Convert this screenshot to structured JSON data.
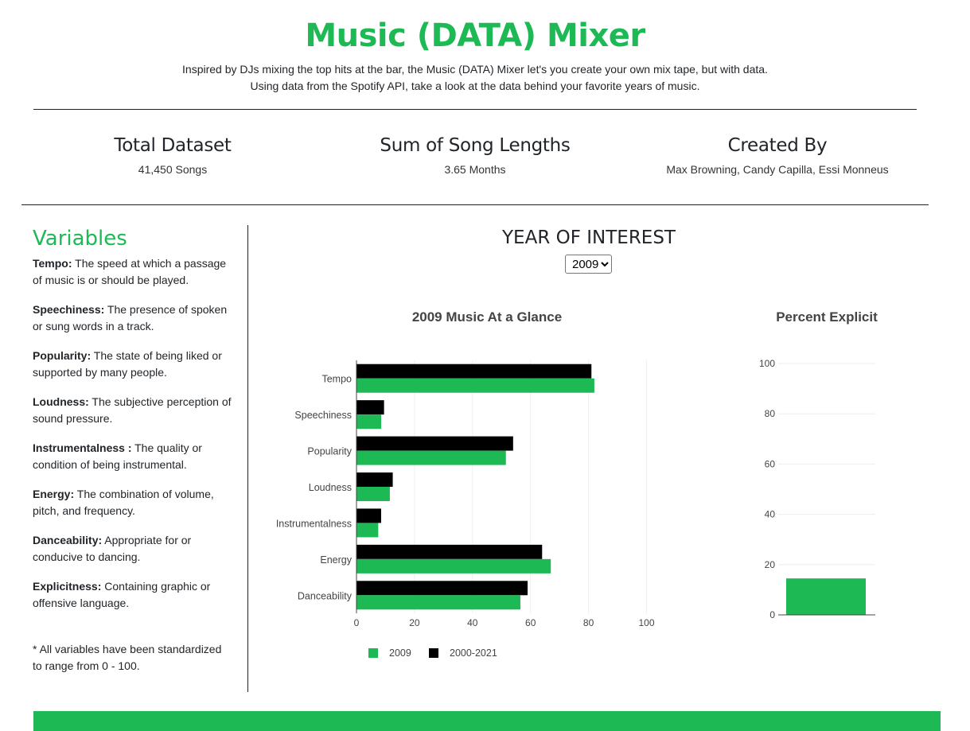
{
  "header": {
    "title": "Music (DATA) Mixer",
    "intro_line1": "Inspired by DJs mixing the top hits at the bar, the Music (DATA) Mixer let's you create your own mix tape, but with data.",
    "intro_line2": "Using data from the Spotify API, take a look at the data behind your favorite years of music."
  },
  "stats": [
    {
      "title": "Total Dataset",
      "value": "41,450 Songs"
    },
    {
      "title": "Sum of Song Lengths",
      "value": "3.65 Months"
    },
    {
      "title": "Created By",
      "value": "Max Browning, Candy Capilla, Essi Monneus"
    }
  ],
  "variables": {
    "heading": "Variables",
    "items": [
      {
        "term": "Tempo:",
        "desc": " The speed at which a passage of music is or should be played."
      },
      {
        "term": "Speechiness:",
        "desc": " The presence of spoken or sung words in a track."
      },
      {
        "term": "Popularity:",
        "desc": " The state of being liked or supported by many people."
      },
      {
        "term": "Loudness:",
        "desc": " The subjective perception of sound pressure."
      },
      {
        "term": "Instrumentalness :",
        "desc": " The quality or condition of being instrumental."
      },
      {
        "term": "Energy:",
        "desc": " The combination of volume, pitch, and frequency."
      },
      {
        "term": "Danceability:",
        "desc": " Appropriate for or conducive to dancing."
      },
      {
        "term": "Explicitness:",
        "desc": " Containing graphic or offensive language."
      }
    ],
    "note": "* All variables have been standardized to range from 0 - 100."
  },
  "year_selector": {
    "heading": "YEAR OF INTEREST",
    "selected": "2009"
  },
  "colors": {
    "accent": "#1db954",
    "secondary": "#000000"
  },
  "chart_data": [
    {
      "type": "bar",
      "orientation": "horizontal",
      "title": "2009 Music At a Glance",
      "categories": [
        "Tempo",
        "Speechiness",
        "Popularity",
        "Loudness",
        "Instrumentalness",
        "Energy",
        "Danceability"
      ],
      "series": [
        {
          "name": "2000-2021",
          "color": "#000000",
          "values": [
            81,
            9.5,
            54,
            12.5,
            8.5,
            64,
            59
          ]
        },
        {
          "name": "2009",
          "color": "#1db954",
          "values": [
            82,
            8.5,
            51.5,
            11.5,
            7.5,
            67,
            56.5
          ]
        }
      ],
      "xlim": [
        0,
        100
      ],
      "xticks": [
        0,
        20,
        40,
        60,
        80,
        100
      ],
      "grid": true,
      "legend": "bottom"
    },
    {
      "type": "bar",
      "title": "Percent Explicit",
      "categories": [
        ""
      ],
      "values": [
        14.5
      ],
      "color": "#1db954",
      "ylim": [
        0,
        100
      ],
      "yticks": [
        0,
        20,
        40,
        60,
        80,
        100
      ],
      "grid": true
    }
  ]
}
